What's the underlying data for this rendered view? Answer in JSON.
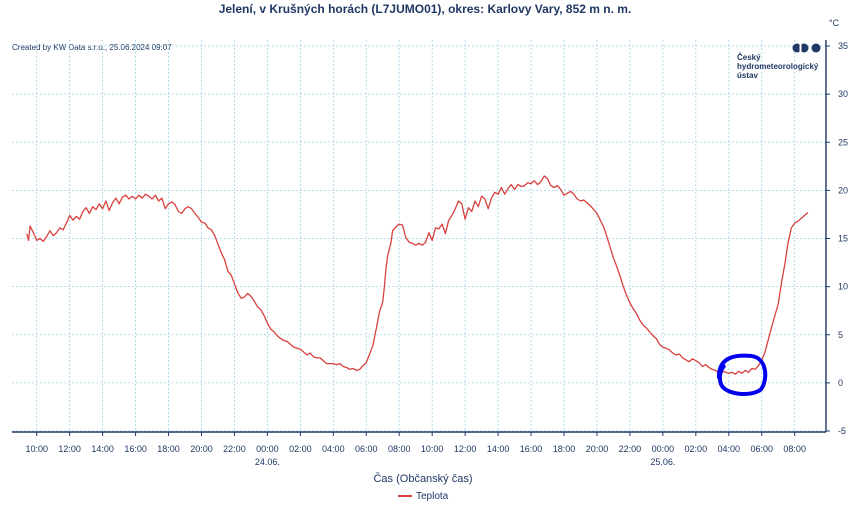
{
  "chart_data": {
    "type": "line",
    "title": "Jelení, v Krušných horách (L7JUMO01), okres: Karlovy Vary, 852 m n. m.",
    "credit": "Created by KW Data s.r.o., 25.06.2024 09:07",
    "unit": "°C",
    "xlabel": "Čas (Občanský čas)",
    "ylabel": "",
    "ylim": [
      -5,
      35
    ],
    "y_ticks": [
      -5,
      0,
      5,
      10,
      15,
      20,
      25,
      30,
      35
    ],
    "x_range_hours": [
      -15.5,
      33.9
    ],
    "x_ticks": [
      {
        "h": -14,
        "label": "10:00"
      },
      {
        "h": -12,
        "label": "12:00"
      },
      {
        "h": -10,
        "label": "14:00"
      },
      {
        "h": -8,
        "label": "16:00"
      },
      {
        "h": -6,
        "label": "18:00"
      },
      {
        "h": -4,
        "label": "20:00"
      },
      {
        "h": -2,
        "label": "22:00"
      },
      {
        "h": 0,
        "label": "00:00"
      },
      {
        "h": 2,
        "label": "02:00"
      },
      {
        "h": 4,
        "label": "04:00"
      },
      {
        "h": 6,
        "label": "06:00"
      },
      {
        "h": 8,
        "label": "08:00"
      },
      {
        "h": 10,
        "label": "10:00"
      },
      {
        "h": 12,
        "label": "12:00"
      },
      {
        "h": 14,
        "label": "14:00"
      },
      {
        "h": 16,
        "label": "16:00"
      },
      {
        "h": 18,
        "label": "18:00"
      },
      {
        "h": 20,
        "label": "20:00"
      },
      {
        "h": 22,
        "label": "22:00"
      },
      {
        "h": 24,
        "label": "00:00"
      },
      {
        "h": 26,
        "label": "02:00"
      },
      {
        "h": 28,
        "label": "04:00"
      },
      {
        "h": 30,
        "label": "06:00"
      },
      {
        "h": 32,
        "label": "08:00"
      }
    ],
    "date_labels": [
      {
        "h": 0,
        "label": "24.06."
      },
      {
        "h": 24,
        "label": "25.06."
      }
    ],
    "legend": [
      {
        "name": "Teplota",
        "color": "#d9413e"
      }
    ],
    "logo_lines": [
      "Český",
      "hydrometeorologický",
      "ústav"
    ],
    "series": [
      {
        "name": "Teplota",
        "color": "#d9413e",
        "points": [
          [
            -14.6,
            15.5
          ],
          [
            -14.5,
            14.8
          ],
          [
            -14.4,
            16.3
          ],
          [
            -14.2,
            15.6
          ],
          [
            -14.0,
            14.8
          ],
          [
            -13.8,
            15.0
          ],
          [
            -13.6,
            14.7
          ],
          [
            -13.4,
            15.2
          ],
          [
            -13.2,
            15.8
          ],
          [
            -13.0,
            15.3
          ],
          [
            -12.8,
            15.6
          ],
          [
            -12.6,
            16.1
          ],
          [
            -12.4,
            15.9
          ],
          [
            -12.2,
            16.6
          ],
          [
            -12.0,
            17.4
          ],
          [
            -11.8,
            16.9
          ],
          [
            -11.6,
            17.3
          ],
          [
            -11.4,
            17.0
          ],
          [
            -11.2,
            17.8
          ],
          [
            -11.0,
            18.2
          ],
          [
            -10.8,
            17.6
          ],
          [
            -10.6,
            18.3
          ],
          [
            -10.4,
            18.0
          ],
          [
            -10.2,
            18.6
          ],
          [
            -10.0,
            18.1
          ],
          [
            -9.8,
            18.9
          ],
          [
            -9.6,
            17.9
          ],
          [
            -9.4,
            18.7
          ],
          [
            -9.2,
            19.2
          ],
          [
            -9.0,
            18.6
          ],
          [
            -8.8,
            19.3
          ],
          [
            -8.6,
            19.5
          ],
          [
            -8.4,
            19.1
          ],
          [
            -8.2,
            19.4
          ],
          [
            -8.0,
            19.1
          ],
          [
            -7.8,
            19.5
          ],
          [
            -7.6,
            19.2
          ],
          [
            -7.4,
            19.6
          ],
          [
            -7.2,
            19.4
          ],
          [
            -7.0,
            19.1
          ],
          [
            -6.8,
            19.5
          ],
          [
            -6.6,
            18.9
          ],
          [
            -6.4,
            19.2
          ],
          [
            -6.2,
            18.1
          ],
          [
            -6.0,
            18.6
          ],
          [
            -5.8,
            18.8
          ],
          [
            -5.6,
            18.5
          ],
          [
            -5.4,
            17.8
          ],
          [
            -5.2,
            17.6
          ],
          [
            -5.0,
            18.1
          ],
          [
            -4.8,
            18.3
          ],
          [
            -4.6,
            18.1
          ],
          [
            -4.4,
            17.6
          ],
          [
            -4.2,
            17.2
          ],
          [
            -4.0,
            16.7
          ],
          [
            -3.8,
            16.6
          ],
          [
            -3.6,
            16.1
          ],
          [
            -3.4,
            15.9
          ],
          [
            -3.2,
            15.3
          ],
          [
            -3.0,
            14.4
          ],
          [
            -2.8,
            13.5
          ],
          [
            -2.6,
            12.8
          ],
          [
            -2.4,
            11.6
          ],
          [
            -2.2,
            11.2
          ],
          [
            -2.0,
            10.3
          ],
          [
            -1.8,
            9.4
          ],
          [
            -1.6,
            8.8
          ],
          [
            -1.4,
            8.9
          ],
          [
            -1.2,
            9.3
          ],
          [
            -1.0,
            9.0
          ],
          [
            -0.8,
            8.5
          ],
          [
            -0.6,
            7.9
          ],
          [
            -0.4,
            7.6
          ],
          [
            -0.2,
            7.0
          ],
          [
            0.0,
            6.2
          ],
          [
            0.2,
            5.6
          ],
          [
            0.4,
            5.3
          ],
          [
            0.6,
            4.9
          ],
          [
            0.8,
            4.6
          ],
          [
            1.0,
            4.4
          ],
          [
            1.2,
            4.3
          ],
          [
            1.4,
            4.0
          ],
          [
            1.6,
            3.7
          ],
          [
            1.8,
            3.6
          ],
          [
            2.0,
            3.5
          ],
          [
            2.2,
            3.2
          ],
          [
            2.4,
            2.9
          ],
          [
            2.6,
            3.1
          ],
          [
            2.8,
            2.7
          ],
          [
            3.0,
            2.6
          ],
          [
            3.2,
            2.6
          ],
          [
            3.4,
            2.3
          ],
          [
            3.6,
            2.0
          ],
          [
            3.8,
            2.0
          ],
          [
            4.0,
            2.0
          ],
          [
            4.2,
            1.9
          ],
          [
            4.4,
            2.0
          ],
          [
            4.6,
            1.7
          ],
          [
            4.8,
            1.6
          ],
          [
            5.0,
            1.4
          ],
          [
            5.2,
            1.5
          ],
          [
            5.4,
            1.3
          ],
          [
            5.6,
            1.4
          ],
          [
            5.8,
            1.8
          ],
          [
            6.0,
            2.1
          ],
          [
            6.2,
            3.0
          ],
          [
            6.4,
            3.9
          ],
          [
            6.6,
            5.6
          ],
          [
            6.8,
            7.4
          ],
          [
            7.0,
            8.4
          ],
          [
            7.1,
            10.0
          ],
          [
            7.2,
            11.9
          ],
          [
            7.3,
            13.2
          ],
          [
            7.5,
            14.6
          ],
          [
            7.6,
            15.8
          ],
          [
            7.8,
            16.2
          ],
          [
            8.0,
            16.5
          ],
          [
            8.2,
            16.4
          ],
          [
            8.4,
            15.1
          ],
          [
            8.6,
            14.6
          ],
          [
            8.8,
            14.5
          ],
          [
            9.0,
            14.3
          ],
          [
            9.2,
            14.5
          ],
          [
            9.4,
            14.3
          ],
          [
            9.6,
            14.6
          ],
          [
            9.8,
            15.6
          ],
          [
            10.0,
            14.8
          ],
          [
            10.2,
            16.1
          ],
          [
            10.4,
            16.0
          ],
          [
            10.6,
            16.5
          ],
          [
            10.8,
            15.5
          ],
          [
            11.0,
            16.9
          ],
          [
            11.2,
            17.4
          ],
          [
            11.4,
            18.1
          ],
          [
            11.6,
            18.9
          ],
          [
            11.8,
            18.6
          ],
          [
            12.0,
            17.0
          ],
          [
            12.2,
            18.2
          ],
          [
            12.4,
            17.8
          ],
          [
            12.6,
            18.9
          ],
          [
            12.8,
            18.3
          ],
          [
            13.0,
            19.4
          ],
          [
            13.2,
            19.1
          ],
          [
            13.4,
            18.1
          ],
          [
            13.6,
            19.2
          ],
          [
            13.8,
            19.8
          ],
          [
            14.0,
            19.6
          ],
          [
            14.2,
            20.3
          ],
          [
            14.4,
            19.6
          ],
          [
            14.6,
            20.2
          ],
          [
            14.8,
            20.6
          ],
          [
            15.0,
            20.1
          ],
          [
            15.2,
            20.6
          ],
          [
            15.4,
            20.4
          ],
          [
            15.6,
            20.5
          ],
          [
            15.8,
            20.8
          ],
          [
            16.0,
            20.7
          ],
          [
            16.2,
            21.0
          ],
          [
            16.4,
            20.6
          ],
          [
            16.6,
            20.9
          ],
          [
            16.8,
            21.5
          ],
          [
            17.0,
            21.2
          ],
          [
            17.2,
            20.5
          ],
          [
            17.4,
            20.3
          ],
          [
            17.6,
            20.5
          ],
          [
            17.8,
            20.1
          ],
          [
            18.0,
            19.5
          ],
          [
            18.2,
            19.7
          ],
          [
            18.4,
            19.9
          ],
          [
            18.6,
            19.6
          ],
          [
            18.8,
            19.1
          ],
          [
            19.0,
            18.9
          ],
          [
            19.2,
            19.0
          ],
          [
            19.4,
            18.7
          ],
          [
            19.6,
            18.4
          ],
          [
            19.8,
            18.0
          ],
          [
            20.0,
            17.6
          ],
          [
            20.2,
            16.9
          ],
          [
            20.4,
            16.2
          ],
          [
            20.6,
            15.2
          ],
          [
            20.8,
            14.1
          ],
          [
            21.0,
            13.0
          ],
          [
            21.2,
            12.1
          ],
          [
            21.4,
            11.1
          ],
          [
            21.6,
            10.0
          ],
          [
            21.8,
            9.1
          ],
          [
            22.0,
            8.3
          ],
          [
            22.2,
            7.7
          ],
          [
            22.4,
            7.2
          ],
          [
            22.6,
            6.5
          ],
          [
            22.8,
            6.0
          ],
          [
            23.0,
            5.7
          ],
          [
            23.2,
            5.3
          ],
          [
            23.4,
            4.9
          ],
          [
            23.6,
            4.6
          ],
          [
            23.8,
            4.0
          ],
          [
            24.0,
            3.7
          ],
          [
            24.2,
            3.6
          ],
          [
            24.4,
            3.4
          ],
          [
            24.6,
            3.1
          ],
          [
            24.8,
            2.9
          ],
          [
            25.0,
            3.0
          ],
          [
            25.2,
            2.6
          ],
          [
            25.4,
            2.4
          ],
          [
            25.6,
            2.2
          ],
          [
            25.8,
            2.5
          ],
          [
            26.0,
            2.3
          ],
          [
            26.2,
            2.1
          ],
          [
            26.4,
            1.7
          ],
          [
            26.6,
            1.9
          ],
          [
            26.8,
            1.6
          ],
          [
            27.0,
            1.4
          ],
          [
            27.2,
            1.3
          ],
          [
            27.4,
            1.0
          ],
          [
            27.6,
            1.2
          ],
          [
            27.8,
            1.1
          ],
          [
            28.0,
            1.0
          ],
          [
            28.2,
            1.1
          ],
          [
            28.4,
            0.9
          ],
          [
            28.6,
            1.2
          ],
          [
            28.8,
            1.0
          ],
          [
            29.0,
            1.3
          ],
          [
            29.2,
            1.1
          ],
          [
            29.4,
            1.5
          ],
          [
            29.6,
            1.4
          ],
          [
            29.8,
            1.8
          ],
          [
            30.0,
            2.3
          ],
          [
            30.2,
            3.2
          ],
          [
            30.4,
            4.5
          ],
          [
            30.6,
            5.8
          ],
          [
            30.8,
            7.0
          ],
          [
            31.0,
            8.2
          ],
          [
            31.2,
            10.4
          ],
          [
            31.4,
            12.3
          ],
          [
            31.6,
            14.6
          ],
          [
            31.8,
            16.1
          ],
          [
            32.0,
            16.6
          ],
          [
            32.2,
            16.8
          ],
          [
            32.4,
            17.1
          ],
          [
            32.6,
            17.4
          ],
          [
            32.8,
            17.7
          ]
        ]
      }
    ],
    "annotation": {
      "shape": "hand-drawn-ellipse",
      "color": "#0000ee",
      "around_hours": [
        27.4,
        30.3
      ],
      "around_values": [
        -1.2,
        2.8
      ]
    }
  }
}
